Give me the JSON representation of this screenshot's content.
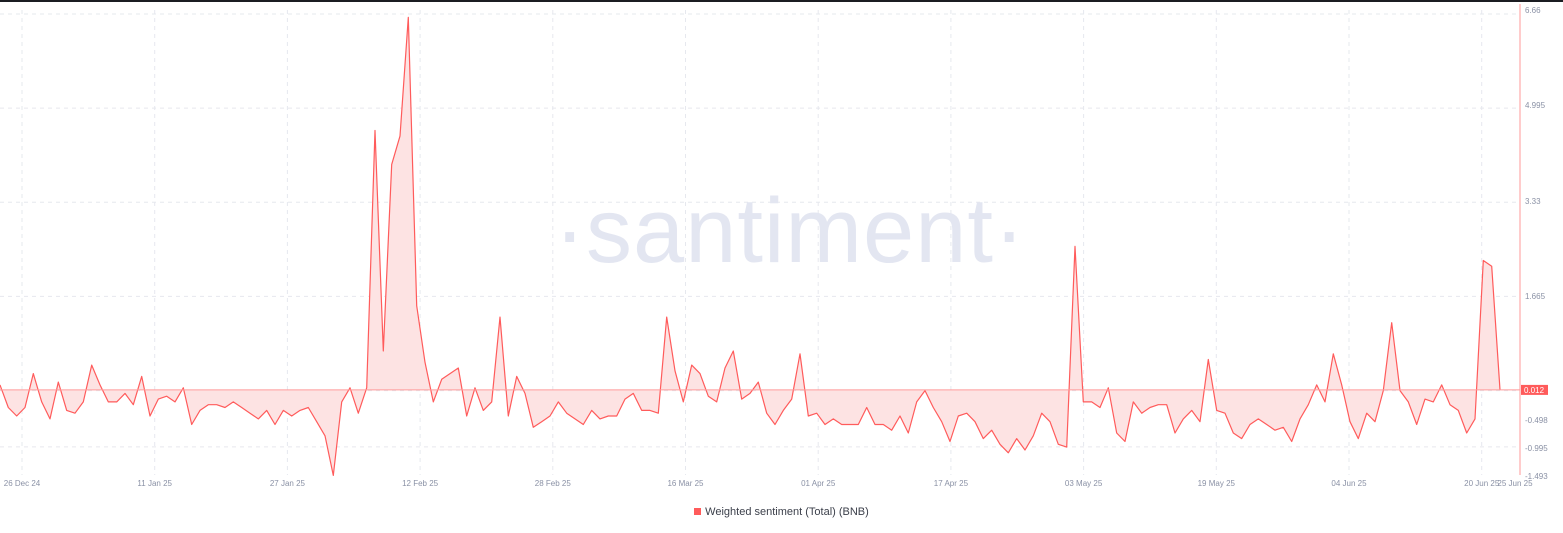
{
  "watermark": "·santiment·",
  "legend": {
    "label": "Weighted sentiment (Total) (BNB)"
  },
  "colors": {
    "series": "#ff5b5b",
    "fill": "#fde3e3",
    "grid": "#e6e8ee",
    "axis": "#ff9a9a"
  },
  "chart_data": {
    "type": "area",
    "x_tick_labels": [
      "26 Dec 24",
      "11 Jan 25",
      "27 Jan 25",
      "12 Feb 25",
      "28 Feb 25",
      "16 Mar 25",
      "01 Apr 25",
      "17 Apr 25",
      "03 May 25",
      "19 May 25",
      "04 Jun 25",
      "20 Jun 25",
      "25 Jun 25"
    ],
    "y_tick_labels": [
      "6.66",
      "4.995",
      "3.33",
      "1.665",
      "-0.498",
      "-0.995",
      "-1.493"
    ],
    "y_ticks": [
      6.66,
      4.995,
      3.33,
      1.665,
      -0.498,
      -0.995,
      -1.493
    ],
    "ylim": [
      -1.493,
      6.66
    ],
    "baseline": 0.012,
    "last_value_label": "0.012",
    "grid": true,
    "legend_position": "bottom-center",
    "series": [
      {
        "name": "Weighted sentiment (Total) (BNB)",
        "values": [
          0.1,
          -0.3,
          -0.45,
          -0.3,
          0.3,
          -0.2,
          -0.5,
          0.15,
          -0.35,
          -0.4,
          -0.2,
          0.45,
          0.1,
          -0.2,
          -0.2,
          -0.05,
          -0.25,
          0.25,
          -0.45,
          -0.15,
          -0.1,
          -0.2,
          0.05,
          -0.6,
          -0.35,
          -0.25,
          -0.25,
          -0.3,
          -0.2,
          -0.3,
          -0.4,
          -0.5,
          -0.35,
          -0.6,
          -0.35,
          -0.45,
          -0.35,
          -0.3,
          -0.55,
          -0.8,
          -1.5,
          -0.2,
          0.05,
          -0.4,
          0.05,
          4.6,
          0.7,
          4.0,
          4.5,
          6.6,
          1.5,
          0.5,
          -0.2,
          0.2,
          0.3,
          0.4,
          -0.45,
          0.05,
          -0.35,
          -0.2,
          1.3,
          -0.45,
          0.25,
          -0.05,
          -0.65,
          -0.55,
          -0.45,
          -0.2,
          -0.4,
          -0.5,
          -0.6,
          -0.35,
          -0.5,
          -0.45,
          -0.45,
          -0.15,
          -0.05,
          -0.35,
          -0.35,
          -0.4,
          1.3,
          0.35,
          -0.2,
          0.45,
          0.3,
          -0.1,
          -0.2,
          0.4,
          0.7,
          -0.15,
          -0.05,
          0.15,
          -0.4,
          -0.6,
          -0.35,
          -0.15,
          0.65,
          -0.45,
          -0.4,
          -0.6,
          -0.5,
          -0.6,
          -0.6,
          -0.6,
          -0.3,
          -0.6,
          -0.6,
          -0.7,
          -0.45,
          -0.75,
          -0.2,
          0.0,
          -0.3,
          -0.55,
          -0.9,
          -0.45,
          -0.4,
          -0.55,
          -0.85,
          -0.7,
          -0.95,
          -1.1,
          -0.85,
          -1.05,
          -0.8,
          -0.4,
          -0.55,
          -0.95,
          -1.0,
          2.55,
          -0.2,
          -0.2,
          -0.3,
          0.05,
          -0.75,
          -0.9,
          -0.2,
          -0.4,
          -0.3,
          -0.25,
          -0.25,
          -0.75,
          -0.5,
          -0.35,
          -0.55,
          0.55,
          -0.35,
          -0.4,
          -0.75,
          -0.85,
          -0.6,
          -0.5,
          -0.6,
          -0.7,
          -0.65,
          -0.9,
          -0.5,
          -0.25,
          0.1,
          -0.2,
          0.65,
          0.1,
          -0.55,
          -0.85,
          -0.4,
          -0.55,
          0.0,
          1.2,
          0.0,
          -0.2,
          -0.6,
          -0.15,
          -0.2,
          0.1,
          -0.25,
          -0.35,
          -0.75,
          -0.5,
          2.3,
          2.2,
          0.012
        ]
      }
    ]
  }
}
